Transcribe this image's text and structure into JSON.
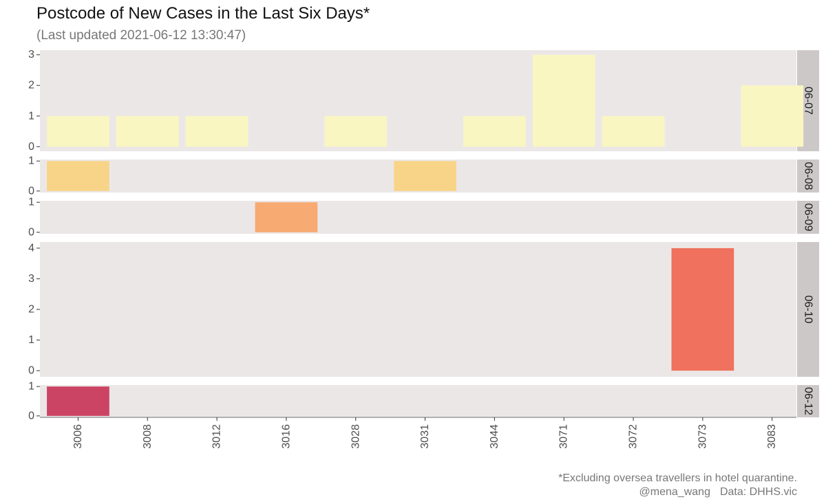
{
  "chart_data": {
    "type": "bar",
    "title": "Postcode of New Cases in the Last Six Days*",
    "subtitle": "(Last updated 2021-06-12 13:30:47)",
    "categories": [
      "3006",
      "3008",
      "3012",
      "3016",
      "3028",
      "3031",
      "3044",
      "3071",
      "3072",
      "3073",
      "3083"
    ],
    "facet_orientation": "rows",
    "facets": [
      {
        "label": "06-07",
        "color": "#F9F6C2",
        "ylim": [
          0,
          3
        ],
        "yticks": [
          0,
          1,
          2,
          3
        ],
        "values": [
          1,
          1,
          1,
          0,
          1,
          0,
          1,
          3,
          1,
          0,
          2
        ]
      },
      {
        "label": "06-08",
        "color": "#F8D488",
        "ylim": [
          0,
          1
        ],
        "yticks": [
          0,
          1
        ],
        "values": [
          1,
          0,
          0,
          0,
          0,
          1,
          0,
          0,
          0,
          0,
          0
        ]
      },
      {
        "label": "06-09",
        "color": "#F7AA72",
        "ylim": [
          0,
          1
        ],
        "yticks": [
          0,
          1
        ],
        "values": [
          0,
          0,
          0,
          1,
          0,
          0,
          0,
          0,
          0,
          0,
          0
        ]
      },
      {
        "label": "06-10",
        "color": "#EF715E",
        "ylim": [
          0,
          4
        ],
        "yticks": [
          0,
          1,
          2,
          3,
          4
        ],
        "values": [
          0,
          0,
          0,
          0,
          0,
          0,
          0,
          0,
          0,
          4,
          0
        ]
      },
      {
        "label": "06-12",
        "color": "#CC4464",
        "ylim": [
          0,
          1
        ],
        "yticks": [
          0,
          1
        ],
        "values": [
          1,
          0,
          0,
          0,
          0,
          0,
          0,
          0,
          0,
          0,
          0
        ]
      }
    ],
    "grid": false,
    "panel_background": "#ECE7E7",
    "strip_background": "#CDC8C8"
  },
  "caption": {
    "note": "*Excluding oversea travellers in hotel quarantine.",
    "author": "@mena_wang",
    "source": "Data: DHHS.vic"
  }
}
